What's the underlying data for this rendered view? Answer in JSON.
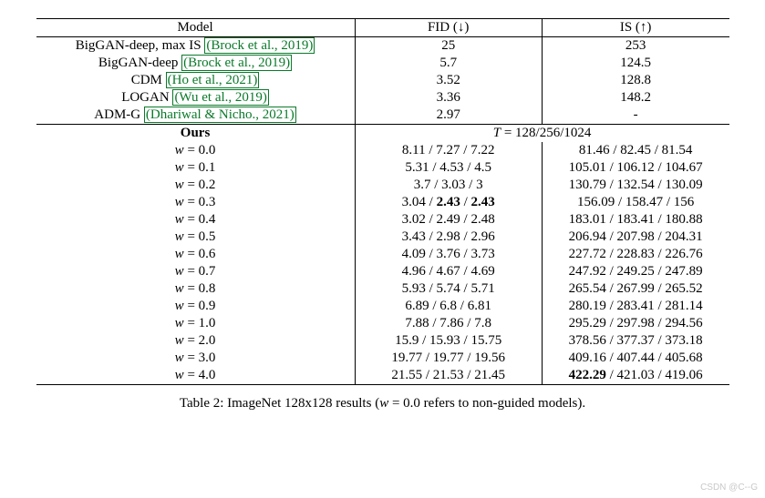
{
  "table": {
    "columns": {
      "model": "Model",
      "fid": "FID (↓)",
      "is": "IS (↑)"
    },
    "baselines": [
      {
        "name": "BigGAN-deep, max IS",
        "cite": "(Brock et al., 2019)",
        "fid": "25",
        "is": "253"
      },
      {
        "name": "BigGAN-deep",
        "cite": "(Brock et al., 2019)",
        "fid": "5.7",
        "is": "124.5"
      },
      {
        "name": "CDM",
        "cite": "(Ho et al., 2021)",
        "fid": "3.52",
        "is": "128.8"
      },
      {
        "name": "LOGAN",
        "cite": "(Wu et al., 2019)",
        "fid": "3.36",
        "is": "148.2"
      },
      {
        "name": "ADM-G",
        "cite": "(Dhariwal & Nicho., 2021)",
        "fid": "2.97",
        "is": "-"
      }
    ],
    "ours_label": "Ours",
    "t_header": "T = 128/256/1024",
    "ours": [
      {
        "w": "w = 0.0",
        "fid": [
          "8.11",
          "7.27",
          "7.22"
        ],
        "is": [
          "81.46",
          "82.45",
          "81.54"
        ],
        "fid_bold": [
          false,
          false,
          false
        ],
        "is_bold": [
          false,
          false,
          false
        ]
      },
      {
        "w": "w = 0.1",
        "fid": [
          "5.31",
          "4.53",
          "4.5"
        ],
        "is": [
          "105.01",
          "106.12",
          "104.67"
        ],
        "fid_bold": [
          false,
          false,
          false
        ],
        "is_bold": [
          false,
          false,
          false
        ]
      },
      {
        "w": "w = 0.2",
        "fid": [
          "3.7",
          "3.03",
          "3"
        ],
        "is": [
          "130.79",
          "132.54",
          "130.09"
        ],
        "fid_bold": [
          false,
          false,
          false
        ],
        "is_bold": [
          false,
          false,
          false
        ]
      },
      {
        "w": "w = 0.3",
        "fid": [
          "3.04",
          "2.43",
          "2.43"
        ],
        "is": [
          "156.09",
          "158.47",
          "156"
        ],
        "fid_bold": [
          false,
          true,
          true
        ],
        "is_bold": [
          false,
          false,
          false
        ]
      },
      {
        "w": "w = 0.4",
        "fid": [
          "3.02",
          "2.49",
          "2.48"
        ],
        "is": [
          "183.01",
          "183.41",
          "180.88"
        ],
        "fid_bold": [
          false,
          false,
          false
        ],
        "is_bold": [
          false,
          false,
          false
        ]
      },
      {
        "w": "w = 0.5",
        "fid": [
          "3.43",
          "2.98",
          "2.96"
        ],
        "is": [
          "206.94",
          "207.98",
          "204.31"
        ],
        "fid_bold": [
          false,
          false,
          false
        ],
        "is_bold": [
          false,
          false,
          false
        ]
      },
      {
        "w": "w = 0.6",
        "fid": [
          "4.09",
          "3.76",
          "3.73"
        ],
        "is": [
          "227.72",
          "228.83",
          "226.76"
        ],
        "fid_bold": [
          false,
          false,
          false
        ],
        "is_bold": [
          false,
          false,
          false
        ]
      },
      {
        "w": "w = 0.7",
        "fid": [
          "4.96",
          "4.67",
          "4.69"
        ],
        "is": [
          "247.92",
          "249.25",
          "247.89"
        ],
        "fid_bold": [
          false,
          false,
          false
        ],
        "is_bold": [
          false,
          false,
          false
        ]
      },
      {
        "w": "w = 0.8",
        "fid": [
          "5.93",
          "5.74",
          "5.71"
        ],
        "is": [
          "265.54",
          "267.99",
          "265.52"
        ],
        "fid_bold": [
          false,
          false,
          false
        ],
        "is_bold": [
          false,
          false,
          false
        ]
      },
      {
        "w": "w = 0.9",
        "fid": [
          "6.89",
          "6.8",
          "6.81"
        ],
        "is": [
          "280.19",
          "283.41",
          "281.14"
        ],
        "fid_bold": [
          false,
          false,
          false
        ],
        "is_bold": [
          false,
          false,
          false
        ]
      },
      {
        "w": "w = 1.0",
        "fid": [
          "7.88",
          "7.86",
          "7.8"
        ],
        "is": [
          "295.29",
          "297.98",
          "294.56"
        ],
        "fid_bold": [
          false,
          false,
          false
        ],
        "is_bold": [
          false,
          false,
          false
        ]
      },
      {
        "w": "w = 2.0",
        "fid": [
          "15.9",
          "15.93",
          "15.75"
        ],
        "is": [
          "378.56",
          "377.37",
          "373.18"
        ],
        "fid_bold": [
          false,
          false,
          false
        ],
        "is_bold": [
          false,
          false,
          false
        ]
      },
      {
        "w": "w = 3.0",
        "fid": [
          "19.77",
          "19.77",
          "19.56"
        ],
        "is": [
          "409.16",
          "407.44",
          "405.68"
        ],
        "fid_bold": [
          false,
          false,
          false
        ],
        "is_bold": [
          false,
          false,
          false
        ]
      },
      {
        "w": "w = 4.0",
        "fid": [
          "21.55",
          "21.53",
          "21.45"
        ],
        "is": [
          "422.29",
          "421.03",
          "419.06"
        ],
        "fid_bold": [
          false,
          false,
          false
        ],
        "is_bold": [
          true,
          false,
          false
        ]
      }
    ]
  },
  "caption": "Table 2: ImageNet 128x128 results (w = 0.0 refers to non-guided models).",
  "watermark": "CSDN @C--G"
}
